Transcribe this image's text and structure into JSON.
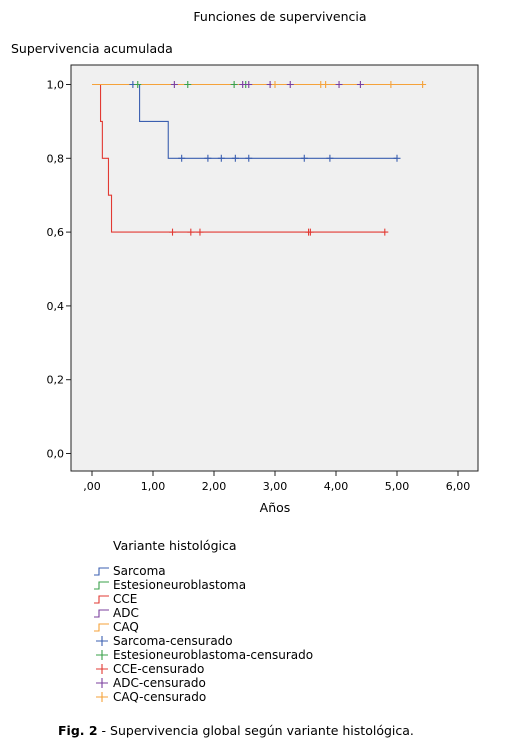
{
  "chart_data": {
    "type": "line",
    "title": "Funciones de supervivencia",
    "ylabel": "Supervivencia acumulada",
    "xlabel": "Años",
    "xlim": [
      0,
      6.3
    ],
    "ylim": [
      0,
      1
    ],
    "xticks": [
      0,
      1,
      2,
      3,
      4,
      5,
      6
    ],
    "xtick_labels": [
      ",00",
      "1,00",
      "2,00",
      "3,00",
      "4,00",
      "5,00",
      "6,00"
    ],
    "yticks": [
      0,
      0.2,
      0.4,
      0.6,
      0.8,
      1.0
    ],
    "ytick_labels": [
      "0,0",
      "0,2",
      "0,4",
      "0,6",
      "0,8",
      "1,0"
    ],
    "grid": false,
    "legend_title": "Variante histológica",
    "legend_position": "bottom",
    "series": [
      {
        "name": "Sarcoma",
        "color": "#3b5fb0",
        "kind": "step",
        "x": [
          0,
          0.78,
          1.25,
          5.0
        ],
        "y": [
          1.0,
          0.9,
          0.8,
          0.8
        ]
      },
      {
        "name": "Estesioneuroblastoma",
        "color": "#3aa04a",
        "kind": "step",
        "x": [
          0,
          2.5
        ],
        "y": [
          1.0,
          1.0
        ]
      },
      {
        "name": "CCE",
        "color": "#e23a33",
        "kind": "step",
        "x": [
          0,
          0.14,
          0.17,
          0.27,
          0.32,
          4.8
        ],
        "y": [
          1.0,
          0.9,
          0.8,
          0.7,
          0.6,
          0.6
        ]
      },
      {
        "name": "ADC",
        "color": "#7b3f9e",
        "kind": "step",
        "x": [
          0,
          4.4
        ],
        "y": [
          1.0,
          1.0
        ]
      },
      {
        "name": "CAQ",
        "color": "#f5a23a",
        "kind": "step",
        "x": [
          0,
          5.42
        ],
        "y": [
          1.0,
          1.0
        ]
      }
    ],
    "censored": [
      {
        "name": "Sarcoma-censurado",
        "color": "#3b5fb0",
        "x": [
          0.67,
          1.47,
          1.9,
          2.12,
          2.35,
          2.57,
          3.48,
          3.9,
          5.0
        ],
        "y": [
          1.0,
          0.8,
          0.8,
          0.8,
          0.8,
          0.8,
          0.8,
          0.8,
          0.8
        ]
      },
      {
        "name": "Estesioneuroblastoma-censurado",
        "color": "#3aa04a",
        "x": [
          0.75,
          1.57,
          2.33,
          2.52
        ],
        "y": [
          1.0,
          1.0,
          1.0,
          1.0
        ]
      },
      {
        "name": "CCE-censurado",
        "color": "#e23a33",
        "x": [
          1.32,
          1.62,
          1.77,
          3.55,
          3.58,
          4.8
        ],
        "y": [
          0.6,
          0.6,
          0.6,
          0.6,
          0.6,
          0.6
        ]
      },
      {
        "name": "ADC-censurado",
        "color": "#7b3f9e",
        "x": [
          1.35,
          2.47,
          2.57,
          2.92,
          3.25,
          4.05,
          4.4
        ],
        "y": [
          1.0,
          1.0,
          1.0,
          1.0,
          1.0,
          1.0,
          1.0
        ]
      },
      {
        "name": "CAQ-censurado",
        "color": "#f5a23a",
        "x": [
          3.0,
          3.75,
          3.83,
          4.9,
          5.42
        ],
        "y": [
          1.0,
          1.0,
          1.0,
          1.0,
          1.0
        ]
      }
    ]
  },
  "caption": {
    "prefix": "Fig. 2",
    "text": " - Supervivencia global según variante histológica."
  }
}
